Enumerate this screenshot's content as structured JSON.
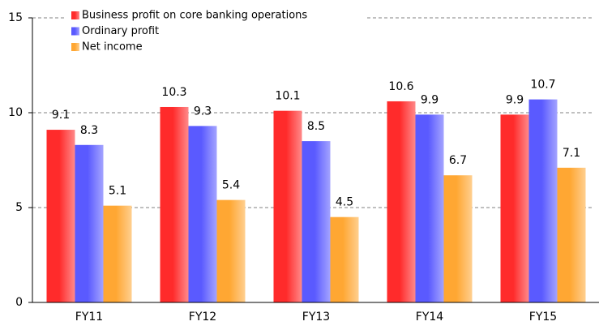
{
  "chart_data": {
    "type": "bar",
    "categories": [
      "FY11",
      "FY12",
      "FY13",
      "FY14",
      "FY15"
    ],
    "series": [
      {
        "name": "Business profit on core banking operations",
        "color": "#ff2b2b",
        "values": [
          9.1,
          10.3,
          10.1,
          10.6,
          9.9
        ]
      },
      {
        "name": "Ordinary profit",
        "color": "#5a5aff",
        "values": [
          8.3,
          9.3,
          8.5,
          9.9,
          10.7
        ]
      },
      {
        "name": "Net income",
        "color": "#ffa733",
        "values": [
          5.1,
          5.4,
          4.5,
          6.7,
          7.1
        ]
      }
    ],
    "ylim": [
      0,
      15
    ],
    "yticks": [
      0,
      5,
      10,
      15
    ],
    "grid": true,
    "legend": "top-left"
  }
}
